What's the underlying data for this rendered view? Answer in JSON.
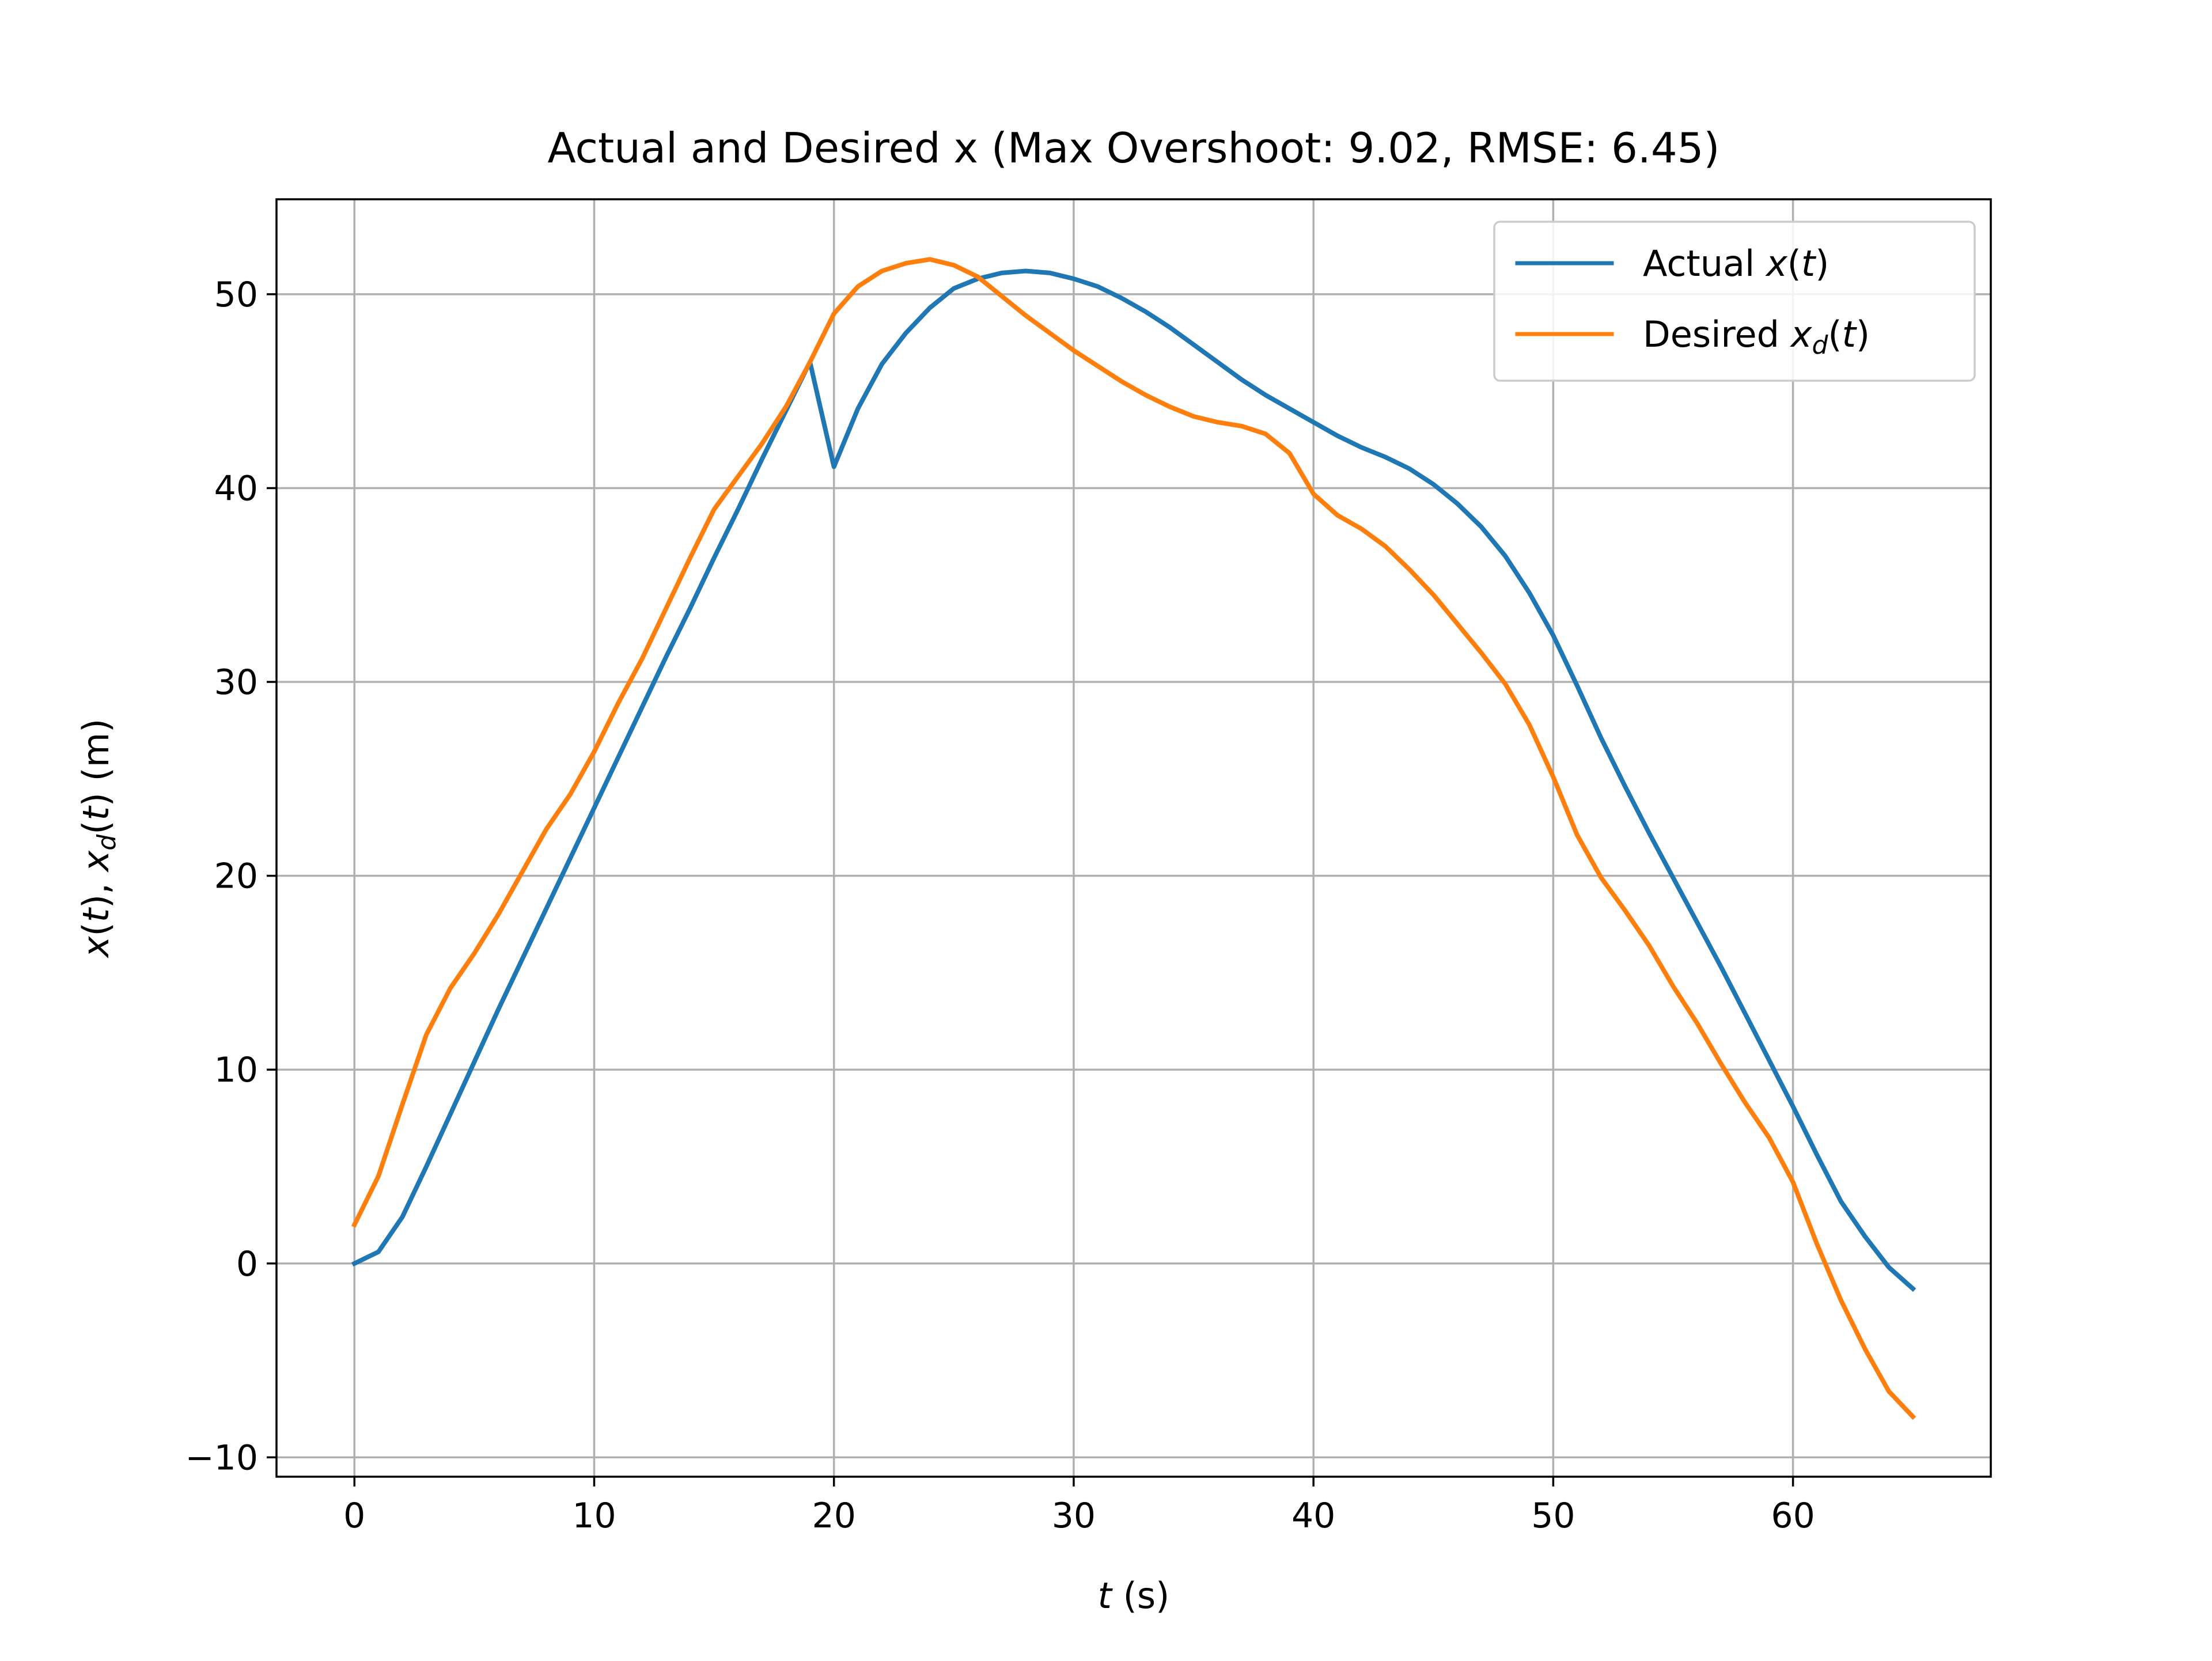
{
  "chart_data": {
    "type": "line",
    "title": "Actual and Desired x (Max Overshoot: 9.02, RMSE: 6.45)",
    "xlabel_var": "t",
    "xlabel_unit": " (s)",
    "ylabel_parts": {
      "x1": "x",
      "t1": "t",
      "x2": "x",
      "sub": "d",
      "t2": "t",
      "unit": " (m)"
    },
    "xlim": [
      -3.25,
      68.25
    ],
    "ylim": [
      -11.0,
      54.9
    ],
    "xticks": [
      0,
      10,
      20,
      30,
      40,
      50,
      60
    ],
    "yticks": [
      -10,
      0,
      10,
      20,
      30,
      40,
      50
    ],
    "xtick_labels": [
      "0",
      "10",
      "20",
      "30",
      "40",
      "50",
      "60"
    ],
    "ytick_labels": [
      "−10",
      "0",
      "10",
      "20",
      "30",
      "40",
      "50"
    ],
    "grid": true,
    "legend_position": "top-right",
    "series": [
      {
        "name": "Actual",
        "legend_var": "x",
        "legend_sub": "",
        "color": "#1f77b4",
        "points": [
          [
            0,
            0
          ],
          [
            1,
            0.6
          ],
          [
            2,
            2.4
          ],
          [
            3,
            5.0
          ],
          [
            4,
            7.7
          ],
          [
            5,
            10.4
          ],
          [
            6,
            13.1
          ],
          [
            7,
            15.7
          ],
          [
            8,
            18.3
          ],
          [
            9,
            20.9
          ],
          [
            10,
            23.5
          ],
          [
            11,
            26.1
          ],
          [
            12,
            28.7
          ],
          [
            13,
            31.3
          ],
          [
            14,
            33.8
          ],
          [
            15,
            36.4
          ],
          [
            16,
            38.9
          ],
          [
            17,
            41.5
          ],
          [
            18,
            44.0
          ],
          [
            19,
            46.5
          ],
          [
            20,
            41.1
          ],
          [
            21,
            44.1
          ],
          [
            22,
            46.4
          ],
          [
            23,
            48.0
          ],
          [
            24,
            49.3
          ],
          [
            25,
            50.3
          ],
          [
            26,
            50.8
          ],
          [
            27,
            51.1
          ],
          [
            28,
            51.2
          ],
          [
            29,
            51.1
          ],
          [
            30,
            50.8
          ],
          [
            31,
            50.4
          ],
          [
            32,
            49.8
          ],
          [
            33,
            49.1
          ],
          [
            34,
            48.3
          ],
          [
            35,
            47.4
          ],
          [
            36,
            46.5
          ],
          [
            37,
            45.6
          ],
          [
            38,
            44.8
          ],
          [
            39,
            44.1
          ],
          [
            40,
            43.4
          ],
          [
            41,
            42.7
          ],
          [
            42,
            42.1
          ],
          [
            43,
            41.6
          ],
          [
            44,
            41.0
          ],
          [
            45,
            40.2
          ],
          [
            46,
            39.2
          ],
          [
            47,
            38.0
          ],
          [
            48,
            36.5
          ],
          [
            49,
            34.6
          ],
          [
            50,
            32.4
          ],
          [
            51,
            29.8
          ],
          [
            52,
            27.1
          ],
          [
            53,
            24.6
          ],
          [
            54,
            22.2
          ],
          [
            55,
            19.9
          ],
          [
            56,
            17.6
          ],
          [
            57,
            15.3
          ],
          [
            58,
            12.9
          ],
          [
            59,
            10.5
          ],
          [
            60,
            8.1
          ],
          [
            61,
            5.6
          ],
          [
            62,
            3.2
          ],
          [
            63,
            1.4
          ],
          [
            64,
            -0.2
          ],
          [
            65,
            -1.3
          ]
        ]
      },
      {
        "name": "Desired",
        "legend_var": "x",
        "legend_sub": "d",
        "color": "#ff7f0e",
        "points": [
          [
            0,
            2.0
          ],
          [
            1,
            4.5
          ],
          [
            2,
            8.2
          ],
          [
            3,
            11.8
          ],
          [
            4,
            14.2
          ],
          [
            5,
            16.0
          ],
          [
            6,
            18.0
          ],
          [
            7,
            20.2
          ],
          [
            8,
            22.4
          ],
          [
            9,
            24.2
          ],
          [
            10,
            26.4
          ],
          [
            11,
            28.9
          ],
          [
            12,
            31.2
          ],
          [
            13,
            33.8
          ],
          [
            14,
            36.4
          ],
          [
            15,
            38.9
          ],
          [
            16,
            40.6
          ],
          [
            17,
            42.3
          ],
          [
            18,
            44.2
          ],
          [
            19,
            46.5
          ],
          [
            20,
            49.0
          ],
          [
            21,
            50.4
          ],
          [
            22,
            51.2
          ],
          [
            23,
            51.6
          ],
          [
            24,
            51.8
          ],
          [
            25,
            51.5
          ],
          [
            26,
            50.9
          ],
          [
            27,
            49.9
          ],
          [
            28,
            48.9
          ],
          [
            29,
            48.0
          ],
          [
            30,
            47.1
          ],
          [
            31,
            46.3
          ],
          [
            32,
            45.5
          ],
          [
            33,
            44.8
          ],
          [
            34,
            44.2
          ],
          [
            35,
            43.7
          ],
          [
            36,
            43.4
          ],
          [
            37,
            43.2
          ],
          [
            38,
            42.8
          ],
          [
            39,
            41.8
          ],
          [
            40,
            39.7
          ],
          [
            41,
            38.6
          ],
          [
            42,
            37.9
          ],
          [
            43,
            37.0
          ],
          [
            44,
            35.8
          ],
          [
            45,
            34.5
          ],
          [
            46,
            33.0
          ],
          [
            47,
            31.5
          ],
          [
            48,
            29.9
          ],
          [
            49,
            27.8
          ],
          [
            50,
            25.1
          ],
          [
            51,
            22.1
          ],
          [
            52,
            19.9
          ],
          [
            53,
            18.2
          ],
          [
            54,
            16.4
          ],
          [
            55,
            14.3
          ],
          [
            56,
            12.4
          ],
          [
            57,
            10.3
          ],
          [
            58,
            8.3
          ],
          [
            59,
            6.5
          ],
          [
            60,
            4.2
          ],
          [
            61,
            1.0
          ],
          [
            62,
            -1.9
          ],
          [
            63,
            -4.4
          ],
          [
            64,
            -6.6
          ],
          [
            65,
            -7.9
          ]
        ]
      }
    ]
  }
}
